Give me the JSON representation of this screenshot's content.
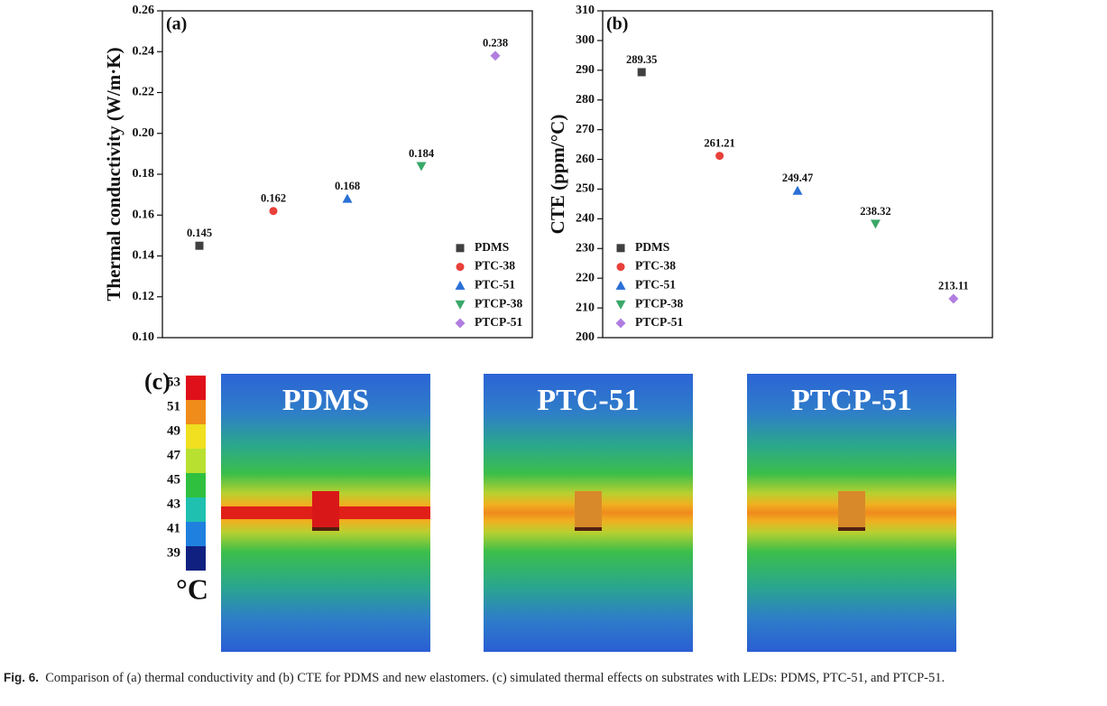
{
  "chart_data": [
    {
      "type": "scatter",
      "panel_label": "(a)",
      "y_label": "Thermal conductivity (W/m·K)",
      "categories": [
        null,
        null,
        null,
        null,
        null
      ],
      "series": [
        {
          "name": "PDMS",
          "color": "#404040",
          "marker": "square",
          "values": [
            0.145,
            null,
            null,
            null,
            null
          ]
        },
        {
          "name": "PTC-38",
          "color": "#e8403a",
          "marker": "circle",
          "values": [
            null,
            0.162,
            null,
            null,
            null
          ]
        },
        {
          "name": "PTC-51",
          "color": "#2a6fd6",
          "marker": "triangle-up",
          "values": [
            null,
            null,
            0.168,
            null,
            null
          ]
        },
        {
          "name": "PTCP-38",
          "color": "#3aa86a",
          "marker": "triangle-down",
          "values": [
            null,
            null,
            null,
            0.184,
            null
          ]
        },
        {
          "name": "PTCP-51",
          "color": "#b07ee0",
          "marker": "diamond",
          "values": [
            null,
            null,
            null,
            null,
            0.238
          ]
        }
      ],
      "ylim": [
        0.1,
        0.26
      ],
      "yticks": [
        {
          "value": 0.1,
          "label": "0.10"
        },
        0.12,
        0.14,
        0.16,
        0.18,
        {
          "value": 0.2,
          "label": "0.20"
        },
        0.22,
        0.24,
        0.26
      ],
      "legend": "lower right",
      "grid": false
    },
    {
      "type": "scatter",
      "panel_label": "(b)",
      "y_label": "CTE (ppm/°C)",
      "categories": [
        null,
        null,
        null,
        null,
        null
      ],
      "series": [
        {
          "name": "PDMS",
          "color": "#404040",
          "marker": "square",
          "values": [
            289.35,
            null,
            null,
            null,
            null
          ]
        },
        {
          "name": "PTC-38",
          "color": "#e8403a",
          "marker": "circle",
          "values": [
            null,
            261.21,
            null,
            null,
            null
          ]
        },
        {
          "name": "PTC-51",
          "color": "#2a6fd6",
          "marker": "triangle-up",
          "values": [
            null,
            null,
            249.47,
            null,
            null
          ]
        },
        {
          "name": "PTCP-38",
          "color": "#3aa86a",
          "marker": "triangle-down",
          "values": [
            null,
            null,
            null,
            238.32,
            null
          ]
        },
        {
          "name": "PTCP-51",
          "color": "#b07ee0",
          "marker": "diamond",
          "values": [
            null,
            null,
            null,
            null,
            213.11
          ]
        }
      ],
      "ylim": [
        200,
        310
      ],
      "yticks": [
        200,
        210,
        220,
        230,
        240,
        250,
        260,
        270,
        280,
        290,
        300,
        310
      ],
      "legend": "lower left",
      "grid": false
    }
  ],
  "thermal_panel": {
    "label": "(c)",
    "scale_ticks": [
      53,
      51,
      49,
      47,
      45,
      43,
      41,
      39
    ],
    "unit": "°C",
    "images": [
      "PDMS",
      "PTC-51",
      "PTCP-51"
    ]
  },
  "caption": {
    "label": "Fig. 6.",
    "text": "Comparison of (a) thermal conductivity and (b) CTE for PDMS and new elastomers. (c) simulated thermal effects on substrates with LEDs: PDMS, PTC-51, and PTCP-51."
  }
}
